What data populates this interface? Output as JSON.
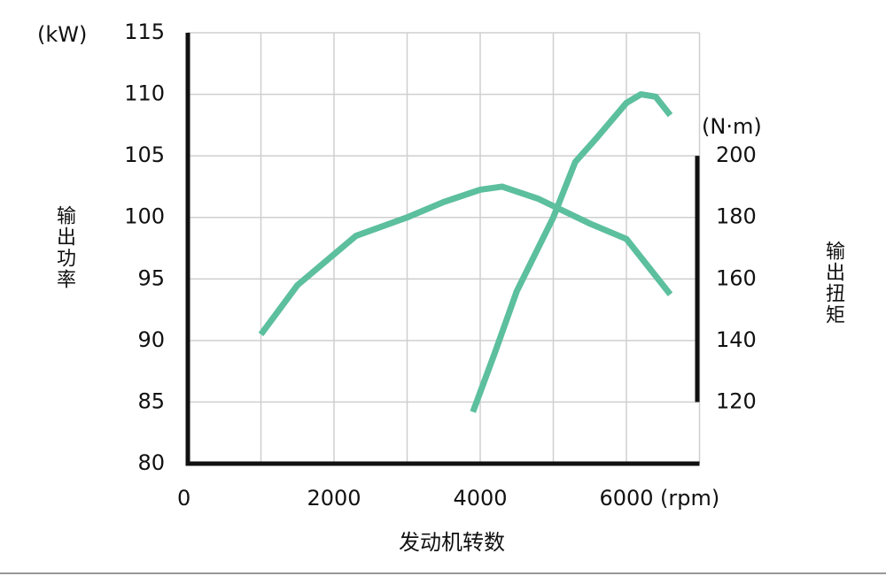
{
  "chart_data": {
    "type": "line",
    "y_label": "输出功率",
    "y2_label": "输出扭矩",
    "x_label": "发动机转数",
    "y_unit": "(kW)",
    "y2_unit": "(N·m)",
    "x_unit": "(rpm)",
    "xlim": [
      0,
      7000
    ],
    "xticks": [
      0,
      2000,
      4000,
      6000
    ],
    "xgrid": [
      1000,
      2000,
      3000,
      4000,
      5000,
      6000,
      7000
    ],
    "ylim": [
      80,
      115
    ],
    "yticks": [
      80,
      85,
      90,
      95,
      100,
      105,
      110,
      115
    ],
    "y2lim": [
      100,
      240
    ],
    "y2ticks": [
      120,
      140,
      160,
      180,
      200
    ],
    "grid": true,
    "axis_color": "#111111",
    "grid_color": "#cfcfcf",
    "series": [
      {
        "color": "#5cbf9e",
        "axis": "y2",
        "x": [
          1000,
          1500,
          2000,
          2300,
          3000,
          3500,
          4000,
          4300,
          4800,
          5500,
          6000,
          6600
        ],
        "values": [
          142,
          158,
          168,
          174,
          180,
          185,
          189,
          190,
          186,
          178,
          173,
          155
        ]
      },
      {
        "color": "#5cbf9e",
        "axis": "y",
        "x": [
          3900,
          4200,
          4500,
          5000,
          5300,
          5600,
          6000,
          6200,
          6400,
          6600
        ],
        "values": [
          84.2,
          89,
          94,
          100,
          104.5,
          106.5,
          109.3,
          110,
          109.8,
          108.3
        ]
      }
    ]
  }
}
